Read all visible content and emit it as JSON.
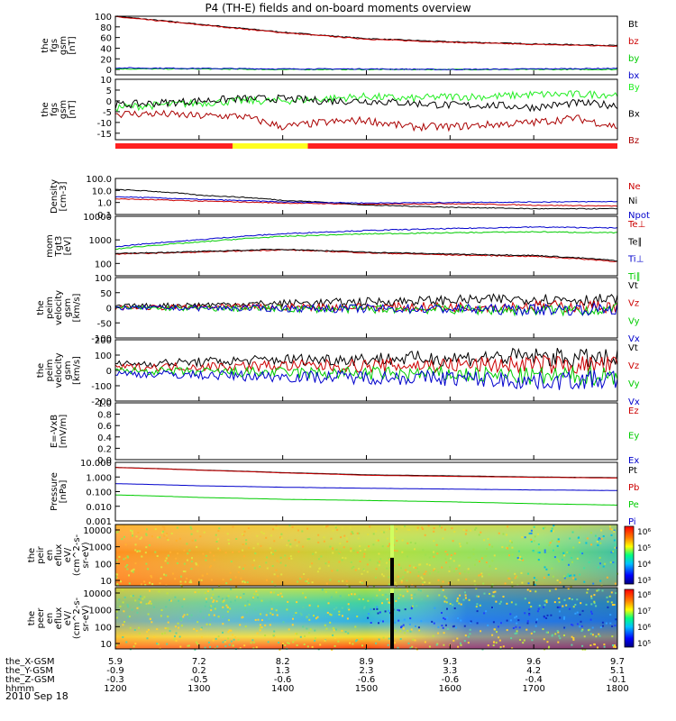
{
  "title": "P4 (TH-E) fields and on-board moments overview",
  "date_label": "2010 Sep 18",
  "colors": {
    "black": "#000000",
    "red": "#cc0000",
    "green": "#00cc00",
    "blue": "#0000cc",
    "bright_green": "#22ee22",
    "bz_red": "#aa0000"
  },
  "chart_data": [
    {
      "id": "fgs_gsm_total",
      "type": "line",
      "ylabel": [
        "the",
        "fgs",
        "gsm",
        "[nT]"
      ],
      "ylim": [
        -10,
        100
      ],
      "y_ticks": [
        "100",
        "80",
        "60",
        "40",
        "20",
        "0"
      ],
      "legend": [
        {
          "name": "Bt",
          "color": "#000000"
        },
        {
          "name": "bz",
          "color": "#cc0000"
        },
        {
          "name": "by",
          "color": "#00cc00"
        },
        {
          "name": "bx",
          "color": "#0000cc"
        }
      ],
      "x": [
        1200,
        1300,
        1400,
        1500,
        1600,
        1700,
        1800
      ],
      "series": [
        {
          "name": "Bt",
          "values": [
            100,
            85,
            70,
            58,
            52,
            48,
            45
          ]
        },
        {
          "name": "bz",
          "values": [
            99,
            84,
            69,
            57,
            51,
            47,
            44
          ]
        },
        {
          "name": "by",
          "values": [
            1,
            1,
            0,
            0,
            0,
            0,
            0
          ]
        },
        {
          "name": "bx",
          "values": [
            3,
            2,
            1,
            1,
            0,
            1,
            2
          ]
        }
      ]
    },
    {
      "id": "fgs_gsm_components",
      "type": "line",
      "ylabel": [
        "the",
        "fgs",
        "gsm",
        "[nT]"
      ],
      "ylim": [
        -18,
        10
      ],
      "y_ticks": [
        "10",
        "5",
        "0",
        "-5",
        "-10",
        "-15"
      ],
      "legend": [
        {
          "name": "By",
          "color": "#22ee22"
        },
        {
          "name": "Bx",
          "color": "#000000"
        },
        {
          "name": "Bz",
          "color": "#aa0000"
        }
      ],
      "x": [
        1200,
        1250,
        1300,
        1350,
        1400,
        1450,
        1500,
        1550,
        1600,
        1650,
        1700,
        1750,
        1800
      ],
      "series": [
        {
          "name": "By",
          "values": [
            -3,
            -2,
            -1,
            0,
            0,
            1,
            2,
            1,
            2,
            2,
            3,
            3,
            3
          ]
        },
        {
          "name": "Bx",
          "values": [
            -2,
            -1,
            0,
            1,
            1,
            0,
            0,
            -1,
            -2,
            -2,
            -3,
            -1,
            -2
          ]
        },
        {
          "name": "Bz",
          "values": [
            -6,
            -6,
            -7,
            -7,
            -12,
            -10,
            -9,
            -12,
            -12,
            -11,
            -10,
            -8,
            -12
          ]
        }
      ]
    },
    {
      "id": "density",
      "type": "line",
      "ylabel": [
        "Density",
        "[cm-3]"
      ],
      "ylim": [
        0.1,
        100
      ],
      "scale": "log",
      "y_ticks": [
        "100.0",
        "10.0",
        "1.0",
        "0.1"
      ],
      "legend": [
        {
          "name": "Ne",
          "color": "#cc0000"
        },
        {
          "name": "Ni",
          "color": "#000000"
        },
        {
          "name": "Npot",
          "color": "#0000cc"
        }
      ],
      "x": [
        1200,
        1300,
        1400,
        1500,
        1600,
        1700,
        1800
      ],
      "series": [
        {
          "name": "Ne",
          "values": [
            2,
            1.3,
            0.9,
            0.7,
            0.8,
            0.6,
            0.5
          ]
        },
        {
          "name": "Ni",
          "values": [
            12,
            4,
            1.5,
            0.6,
            0.4,
            0.3,
            0.3
          ]
        },
        {
          "name": "Npot",
          "values": [
            3,
            1.8,
            1.1,
            0.9,
            1.0,
            1.1,
            1.2
          ]
        }
      ]
    },
    {
      "id": "temperature",
      "type": "line",
      "ylabel": [
        "mom",
        "Tgt3",
        "[eV]"
      ],
      "ylim": [
        30,
        10000
      ],
      "scale": "log",
      "y_ticks": [
        "10000",
        "1000",
        "100"
      ],
      "legend": [
        {
          "name": "Te⊥",
          "color": "#cc0000"
        },
        {
          "name": "Te∥",
          "color": "#000000"
        },
        {
          "name": "Ti⊥",
          "color": "#0000cc"
        },
        {
          "name": "Ti∥",
          "color": "#00cc00"
        }
      ],
      "x": [
        1200,
        1300,
        1400,
        1500,
        1600,
        1700,
        1800
      ],
      "series": [
        {
          "name": "Te⊥",
          "values": [
            250,
            300,
            380,
            280,
            230,
            200,
            120
          ]
        },
        {
          "name": "Te∥",
          "values": [
            260,
            320,
            400,
            300,
            250,
            220,
            130
          ]
        },
        {
          "name": "Ti⊥",
          "values": [
            500,
            1000,
            1800,
            2500,
            3000,
            3500,
            3200
          ]
        },
        {
          "name": "Ti∥",
          "values": [
            400,
            800,
            1400,
            1800,
            2000,
            2200,
            2000
          ]
        }
      ]
    },
    {
      "id": "peim_velocity",
      "type": "line",
      "ylabel": [
        "the",
        "peim",
        "velocity",
        "gsm",
        "[km/s]"
      ],
      "ylim": [
        -100,
        100
      ],
      "y_ticks": [
        "100",
        "50",
        "0",
        "-50",
        "-100"
      ],
      "legend": [
        {
          "name": "Vt",
          "color": "#000000"
        },
        {
          "name": "Vz",
          "color": "#cc0000"
        },
        {
          "name": "Vy",
          "color": "#00cc00"
        },
        {
          "name": "Vx",
          "color": "#0000cc"
        }
      ],
      "x": [
        1200,
        1300,
        1400,
        1500,
        1600,
        1700,
        1800
      ],
      "series": [
        {
          "name": "Vt",
          "values": [
            5,
            10,
            15,
            20,
            25,
            30,
            25
          ]
        },
        {
          "name": "Vz",
          "values": [
            0,
            2,
            3,
            2,
            3,
            5,
            4
          ]
        },
        {
          "name": "Vy",
          "values": [
            0,
            -2,
            -3,
            -4,
            -5,
            -8,
            -5
          ]
        },
        {
          "name": "Vx",
          "values": [
            0,
            -1,
            -2,
            -3,
            -4,
            -6,
            -4
          ]
        }
      ]
    },
    {
      "id": "peir_velocity",
      "type": "line",
      "ylabel": [
        "the",
        "peim",
        "velocity",
        "gsm",
        "[km/s]"
      ],
      "ylim": [
        -200,
        200
      ],
      "y_ticks": [
        "200",
        "100",
        "0",
        "-100",
        "-200"
      ],
      "legend": [
        {
          "name": "Vt",
          "color": "#000000"
        },
        {
          "name": "Vz",
          "color": "#cc0000"
        },
        {
          "name": "Vy",
          "color": "#00cc00"
        },
        {
          "name": "Vx",
          "color": "#0000cc"
        }
      ],
      "x": [
        1200,
        1300,
        1400,
        1500,
        1600,
        1700,
        1800
      ],
      "series": [
        {
          "name": "Vt",
          "values": [
            40,
            55,
            70,
            75,
            80,
            90,
            70
          ]
        },
        {
          "name": "Vz",
          "values": [
            20,
            25,
            30,
            30,
            35,
            40,
            30
          ]
        },
        {
          "name": "Vy",
          "values": [
            0,
            -10,
            -15,
            -20,
            -25,
            -40,
            -30
          ]
        },
        {
          "name": "Vx",
          "values": [
            -20,
            -30,
            -40,
            -45,
            -50,
            -70,
            -60
          ]
        }
      ]
    },
    {
      "id": "efield",
      "type": "line",
      "ylabel": [
        "E=-VxB",
        "[mV/m]"
      ],
      "ylim": [
        0.0,
        1.0
      ],
      "y_ticks": [
        "1.0",
        "0.8",
        "0.6",
        "0.4",
        "0.2",
        "0.0"
      ],
      "legend": [
        {
          "name": "Ez",
          "color": "#cc0000"
        },
        {
          "name": "Ey",
          "color": "#00cc00"
        },
        {
          "name": "Ex",
          "color": "#0000cc"
        }
      ],
      "series": []
    },
    {
      "id": "pressure",
      "type": "line",
      "ylabel": [
        "Pressure",
        "[nPa]"
      ],
      "ylim": [
        0.001,
        10
      ],
      "scale": "log",
      "y_ticks": [
        "10.000",
        "1.000",
        "0.100",
        "0.010",
        "0.001"
      ],
      "legend": [
        {
          "name": "Pt",
          "color": "#000000"
        },
        {
          "name": "Pb",
          "color": "#cc0000"
        },
        {
          "name": "Pe",
          "color": "#00cc00"
        },
        {
          "name": "Pi",
          "color": "#0000cc"
        }
      ],
      "x": [
        1200,
        1300,
        1400,
        1500,
        1600,
        1700,
        1800
      ],
      "series": [
        {
          "name": "Pt",
          "values": [
            4.5,
            3.0,
            2.0,
            1.4,
            1.2,
            1.0,
            0.9
          ]
        },
        {
          "name": "Pb",
          "values": [
            4.4,
            2.9,
            1.9,
            1.3,
            1.1,
            0.95,
            0.85
          ]
        },
        {
          "name": "Pe",
          "values": [
            0.06,
            0.04,
            0.03,
            0.025,
            0.02,
            0.015,
            0.012
          ]
        },
        {
          "name": "Pi",
          "values": [
            0.35,
            0.25,
            0.2,
            0.17,
            0.15,
            0.13,
            0.12
          ]
        }
      ]
    },
    {
      "id": "peir_spectrogram",
      "type": "heatmap",
      "ylabel": [
        "the",
        "peir",
        "en",
        "eflux",
        "eV/",
        "(cm^2-s-",
        "sr-eV)"
      ],
      "y_ticks": [
        "10000",
        "1000",
        "100",
        "10"
      ],
      "colorbar_ticks": [
        "10⁶",
        "10⁵",
        "10⁴",
        "10³"
      ]
    },
    {
      "id": "peer_spectrogram",
      "type": "heatmap",
      "ylabel": [
        "the",
        "peer",
        "en",
        "eflux",
        "eV/",
        "(cm^2-s-",
        "sr-eV)"
      ],
      "y_ticks": [
        "10000",
        "1000",
        "100",
        "10"
      ],
      "colorbar_ticks": [
        "10⁸",
        "10⁷",
        "10⁶",
        "10⁵"
      ]
    }
  ],
  "x_axis": {
    "rows": [
      {
        "label": "the_X-GSM",
        "values": [
          "5.9",
          "7.2",
          "8.2",
          "8.9",
          "9.3",
          "9.6",
          "9.7"
        ]
      },
      {
        "label": "the_Y-GSM",
        "values": [
          "-0.9",
          "0.2",
          "1.3",
          "2.3",
          "3.3",
          "4.2",
          "5.1"
        ]
      },
      {
        "label": "the_Z-GSM",
        "values": [
          "-0.3",
          "-0.5",
          "-0.6",
          "-0.6",
          "-0.6",
          "-0.4",
          "-0.1"
        ]
      },
      {
        "label": "hhmm",
        "values": [
          "1200",
          "1300",
          "1400",
          "1500",
          "1600",
          "1700",
          "1800"
        ]
      }
    ]
  }
}
